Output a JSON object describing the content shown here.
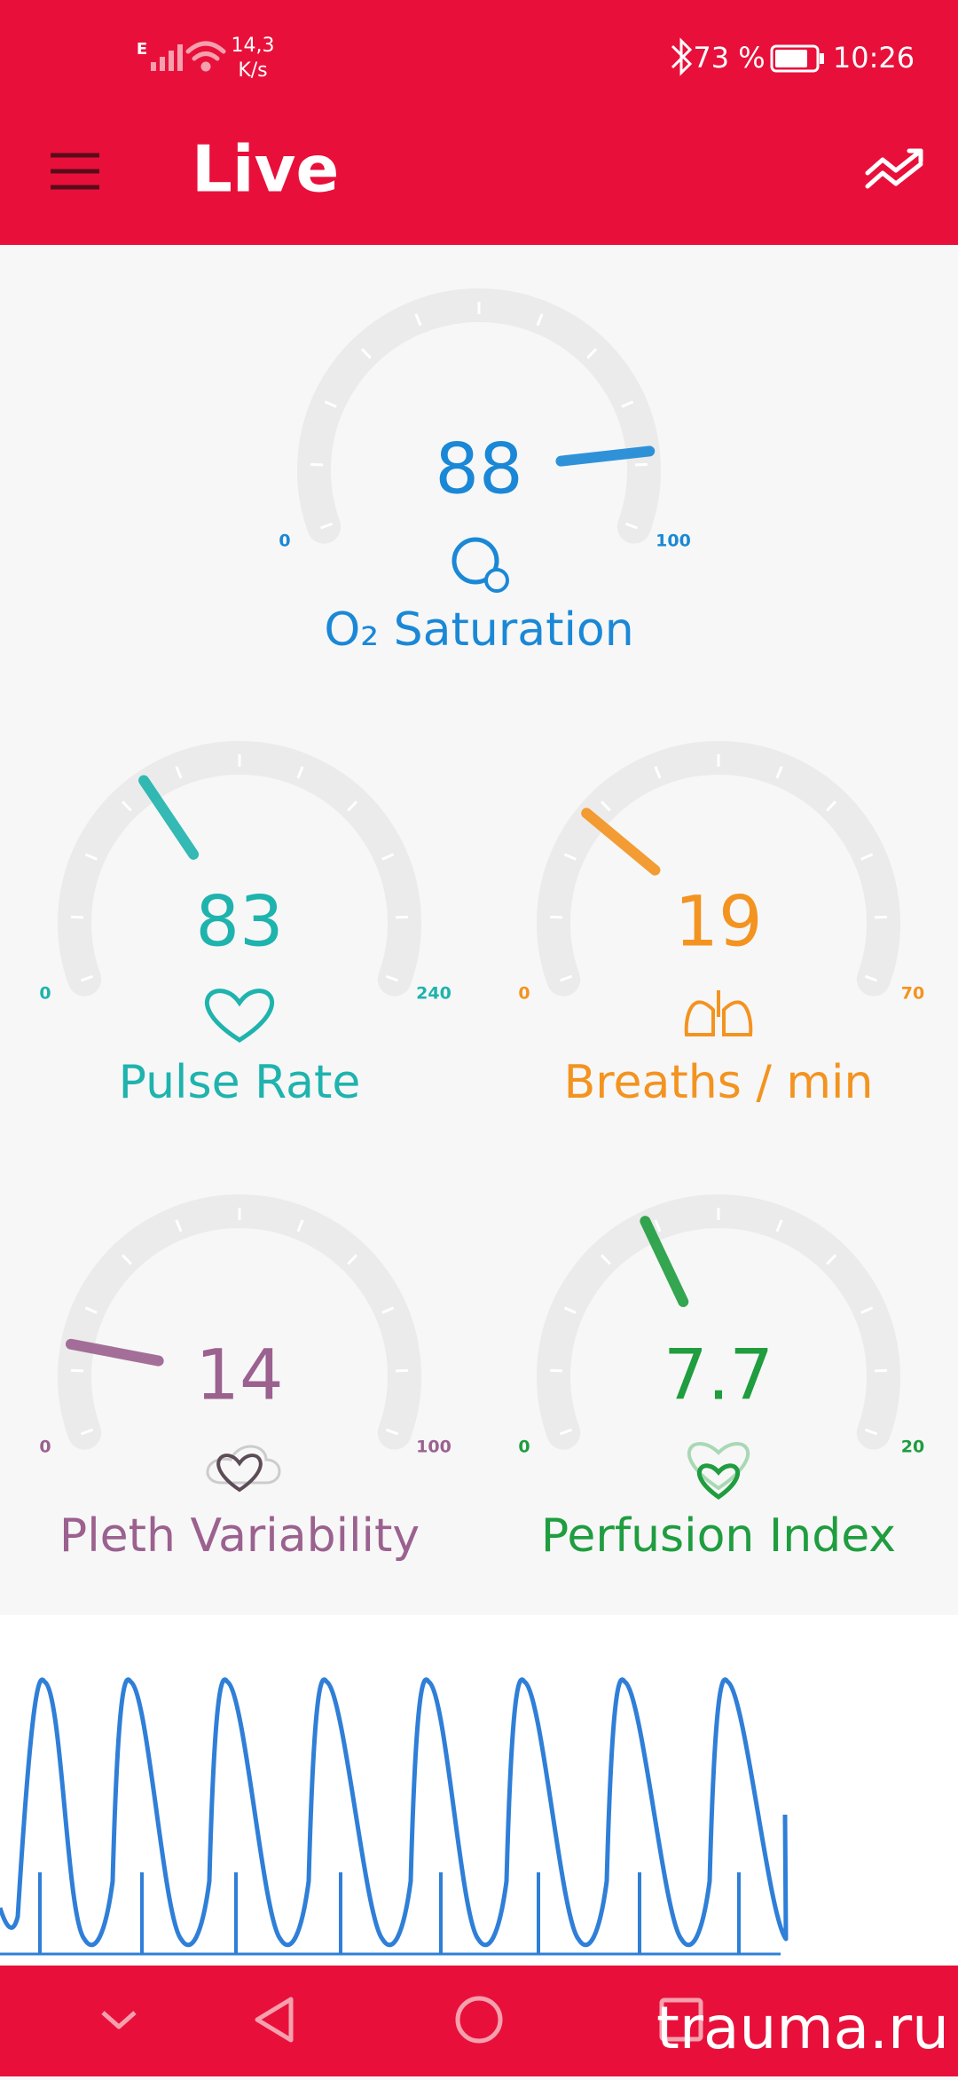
{
  "status_bar": {
    "network": "E",
    "speed": "14,3",
    "speed_unit": "K/s",
    "battery": "73 %",
    "time": "10:26"
  },
  "app_bar": {
    "title": "Live"
  },
  "gauges": [
    {
      "label": "O₂ Saturation",
      "value": 88,
      "min": 0,
      "max": 100,
      "color": "#1a88d6"
    },
    {
      "label": "Pulse Rate",
      "value": 83,
      "min": 0,
      "max": 240,
      "color": "#1fb3ad"
    },
    {
      "label": "Breaths / min",
      "value": 19,
      "min": 0,
      "max": 70,
      "color": "#f39320"
    },
    {
      "label": "Pleth Variability",
      "value": 14,
      "min": 0,
      "max": 100,
      "color": "#9b618f"
    },
    {
      "label": "Perfusion Index",
      "value": 7.7,
      "min": 0,
      "max": 20,
      "color": "#1f9d3f"
    }
  ],
  "watermark": "trauma.ru"
}
